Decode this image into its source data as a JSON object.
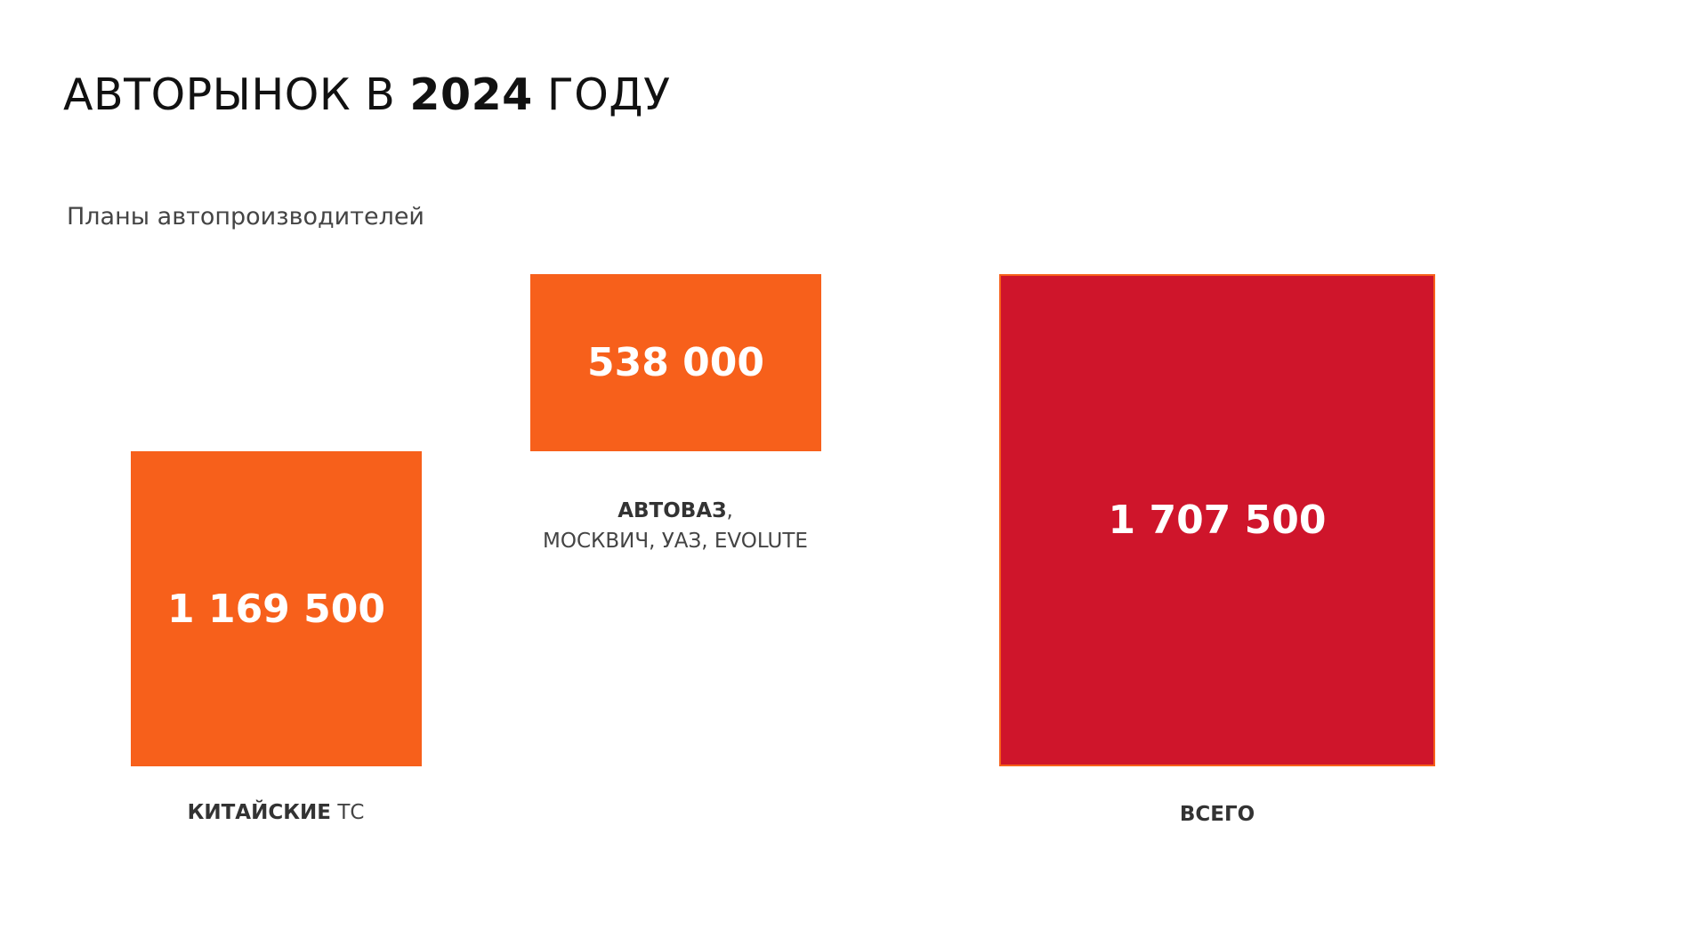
{
  "header": {
    "title": {
      "prefix": "АВТОРЫНОК В",
      "year": "2024",
      "suffix": "ГОДУ"
    },
    "subtitle": "Планы автопроизводителей"
  },
  "blocks": [
    {
      "value": "1 169 500",
      "label_bold": "КИТАЙСКИЕ",
      "label_rest": "ТС"
    },
    {
      "value": "538 000",
      "label_bold": "АВТОВАЗ",
      "label_rest": ",",
      "label_line2": "МОСКВИЧ, УАЗ, EVOLUTE"
    },
    {
      "value": "1 707 500",
      "label_bold": "ВСЕГО"
    }
  ]
}
